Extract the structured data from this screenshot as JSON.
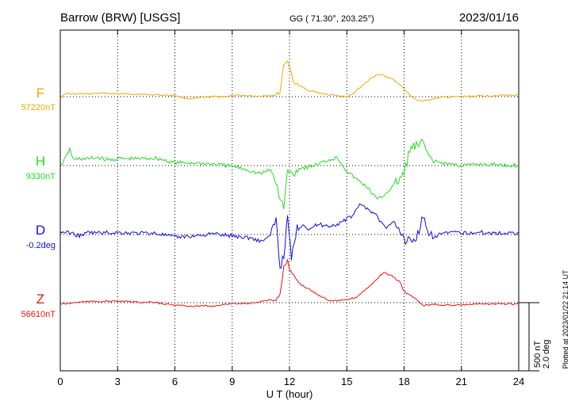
{
  "header": {
    "station": "Barrow (BRW)  [USGS]",
    "coords": "GG ( 71.30°, 203.25°)",
    "date": "2023/01/16"
  },
  "side_note": "Plotted at 2023/01/22 21:14 UT",
  "scale_bar": {
    "line1": "500 nT",
    "line2": "2.0 deg"
  },
  "chart_data": {
    "type": "line",
    "xlabel": "U T (hour)",
    "xlim": [
      0,
      24
    ],
    "xticks": [
      0,
      3,
      6,
      9,
      12,
      15,
      18,
      21,
      24
    ],
    "xtick_labels": [
      "0",
      "3",
      "6",
      "9",
      "12",
      "15",
      "18",
      "21",
      "24"
    ],
    "grid": true,
    "scale_nT_per_bar": 500,
    "scale_deg_per_bar": 2.0,
    "series": [
      {
        "name": "F",
        "baseline_label": "57220nT",
        "color": "#f0a800",
        "unit": "nT",
        "x": [
          0,
          0.3,
          0.5,
          1,
          1.5,
          2,
          2.5,
          3,
          3.5,
          4,
          4.5,
          5,
          5.5,
          6,
          6.5,
          7,
          7.5,
          8,
          8.5,
          9,
          9.5,
          10,
          10.5,
          11,
          11.3,
          11.5,
          11.7,
          11.9,
          12,
          12.2,
          12.5,
          12.8,
          13,
          13.5,
          14,
          14.5,
          15,
          15.3,
          15.6,
          16,
          16.3,
          16.6,
          17,
          17.5,
          18,
          18.3,
          18.6,
          19,
          19.5,
          20,
          21,
          22,
          23,
          24
        ],
        "y": [
          -10,
          25,
          20,
          20,
          20,
          25,
          25,
          20,
          20,
          20,
          15,
          15,
          10,
          10,
          -10,
          -15,
          -5,
          0,
          0,
          5,
          10,
          5,
          5,
          10,
          15,
          30,
          240,
          260,
          220,
          110,
          80,
          60,
          45,
          30,
          15,
          5,
          0,
          15,
          60,
          100,
          140,
          165,
          150,
          120,
          60,
          10,
          -20,
          -35,
          -15,
          -5,
          0,
          5,
          10,
          10
        ]
      },
      {
        "name": "H",
        "baseline_label": "9330nT",
        "color": "#22dd22",
        "unit": "nT",
        "x": [
          0,
          0.3,
          0.5,
          0.7,
          1,
          1.5,
          2,
          2.5,
          3,
          3.5,
          4,
          5,
          6,
          6.5,
          7,
          8,
          9,
          9.5,
          10,
          10.5,
          11,
          11.3,
          11.5,
          11.7,
          11.9,
          12.2,
          12.5,
          13,
          13.5,
          14,
          14.5,
          15,
          15.5,
          16,
          16.3,
          16.6,
          17,
          17.5,
          18,
          18.3,
          18.7,
          19,
          19.5,
          20,
          21,
          22,
          23,
          24
        ],
        "y": [
          0,
          60,
          120,
          40,
          50,
          50,
          60,
          40,
          50,
          50,
          50,
          55,
          20,
          20,
          20,
          10,
          -5,
          -20,
          -40,
          -60,
          -30,
          -120,
          -250,
          -300,
          -40,
          -60,
          -20,
          -10,
          10,
          40,
          60,
          -40,
          -100,
          -150,
          -200,
          -250,
          -210,
          -140,
          -60,
          120,
          140,
          160,
          30,
          20,
          0,
          10,
          5,
          0
        ]
      },
      {
        "name": "D",
        "baseline_label": "-0.2deg",
        "color": "#1010dd",
        "unit": "deg",
        "x": [
          0,
          0.5,
          1,
          1.5,
          2,
          3,
          4,
          5,
          6,
          7,
          8,
          9,
          10,
          10.5,
          11,
          11.3,
          11.5,
          11.7,
          11.9,
          12.1,
          12.4,
          12.8,
          13,
          13.5,
          14,
          14.5,
          15,
          15.3,
          15.6,
          16,
          16.5,
          17,
          17.5,
          18,
          18.5,
          19,
          19.5,
          20,
          21,
          22,
          23,
          24
        ],
        "y": [
          0.08,
          0.05,
          -0.04,
          0.06,
          0.05,
          0.06,
          0.04,
          0.04,
          -0.08,
          -0.04,
          0.02,
          -0.04,
          -0.1,
          -0.2,
          -0.04,
          0.45,
          -1.0,
          -0.6,
          0.5,
          -0.7,
          0.2,
          0.3,
          0.15,
          0.3,
          0.25,
          0.3,
          0.45,
          0.55,
          0.85,
          0.8,
          0.6,
          0.2,
          0.35,
          -0.1,
          -0.2,
          0.45,
          -0.15,
          0.05,
          0.05,
          0.06,
          0.04,
          0.05
        ]
      },
      {
        "name": "Z",
        "baseline_label": "56610nT",
        "color": "#ee1111",
        "unit": "nT",
        "x": [
          0,
          0.5,
          1,
          2,
          3,
          4,
          5,
          6,
          7,
          8,
          9,
          10,
          10.5,
          11,
          11.3,
          11.5,
          11.7,
          11.9,
          12,
          12.2,
          12.5,
          13,
          13.5,
          14,
          14.5,
          15,
          15.5,
          16,
          16.5,
          16.9,
          17.3,
          17.8,
          18,
          18.5,
          19,
          19.5,
          20,
          21,
          22,
          23,
          24
        ],
        "y": [
          -10,
          -5,
          5,
          10,
          10,
          5,
          0,
          -20,
          -25,
          -25,
          -5,
          -5,
          10,
          20,
          20,
          60,
          260,
          310,
          240,
          200,
          140,
          100,
          60,
          20,
          15,
          20,
          40,
          100,
          160,
          220,
          200,
          150,
          80,
          40,
          -20,
          -10,
          -20,
          -15,
          -10,
          -10,
          -10
        ]
      }
    ]
  }
}
